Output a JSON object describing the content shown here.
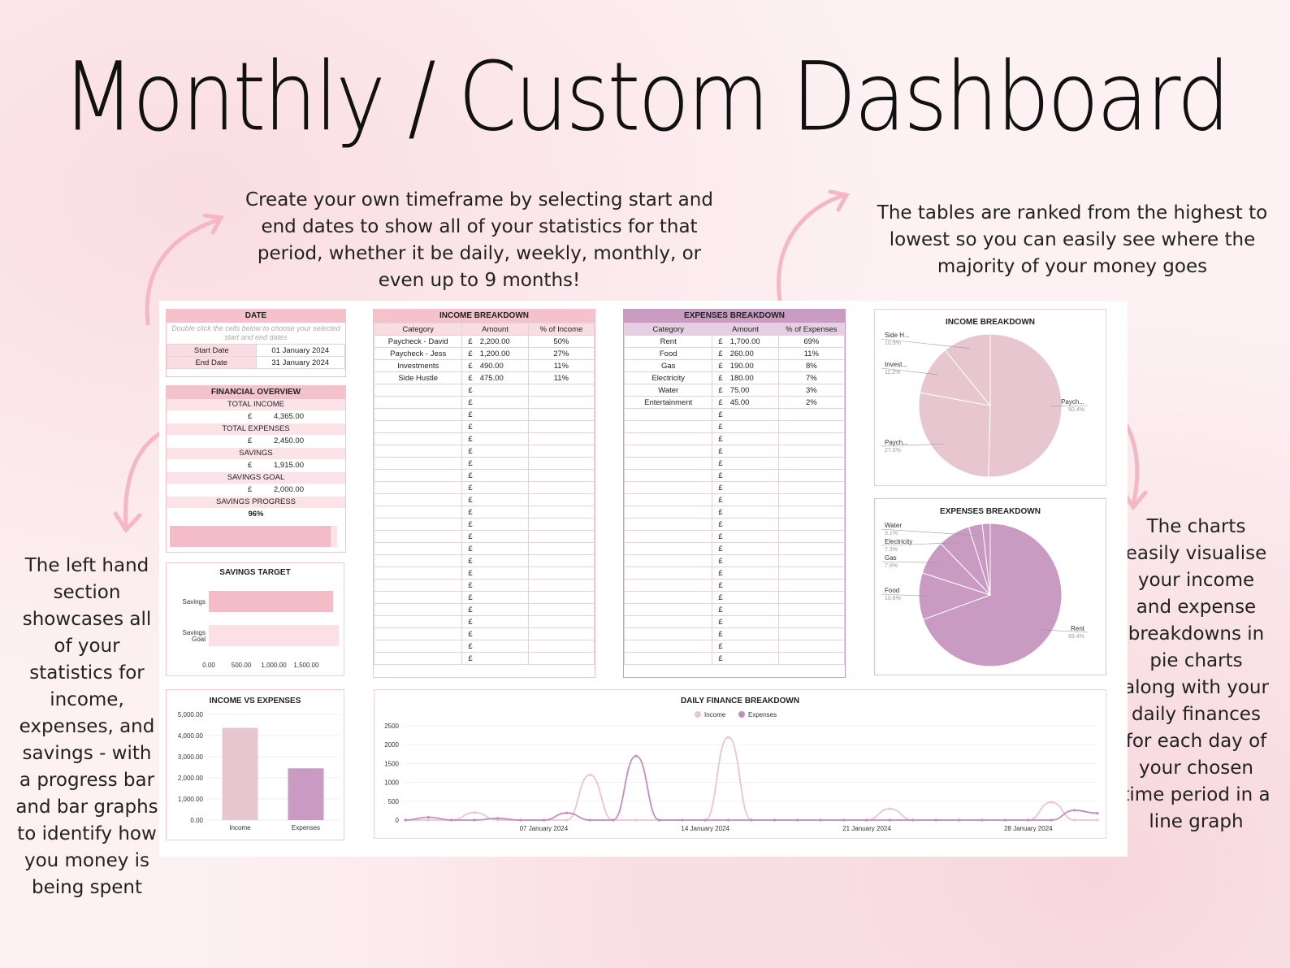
{
  "title": "Monthly / Custom Dashboard",
  "notes": {
    "top": "Create your own timeframe by selecting start and end dates to show all of your statistics for that period, whether it be daily, weekly, monthly, or even up to 9 months!",
    "right": "The tables are ranked from the highest to lowest so you can easily see where the majority of your money goes",
    "left": "The left hand section showcases all of your statistics for income, expenses, and savings - with a progress bar and bar graphs to identify how you money is being spent",
    "bottom_right": "The charts easily visualise your income and expense breakdowns in pie charts along with your daily finances for each day of your chosen time period in a line graph"
  },
  "colors": {
    "pink": "#f4c2cb",
    "light_pink": "#e8c6d0",
    "purple": "#c99bc2",
    "income_line": "#e8c6d0",
    "expense_line": "#c18dbf"
  },
  "date_panel": {
    "header": "DATE",
    "hint": "Double click the cells below to choose your selected start and end dates",
    "start_label": "Start Date",
    "start_value": "01 January 2024",
    "end_label": "End Date",
    "end_value": "31 January 2024"
  },
  "financial_overview": {
    "header": "FINANCIAL OVERVIEW",
    "total_income_label": "TOTAL INCOME",
    "total_income": "4,365.00",
    "total_expenses_label": "TOTAL EXPENSES",
    "total_expenses": "2,450.00",
    "savings_label": "SAVINGS",
    "savings": "1,915.00",
    "savings_goal_label": "SAVINGS GOAL",
    "savings_goal": "2,000.00",
    "savings_progress_label": "SAVINGS PROGRESS",
    "savings_progress": "96%",
    "progress_fraction": 0.96,
    "currency": "£"
  },
  "income_table": {
    "header": "INCOME BREAKDOWN",
    "columns": [
      "Category",
      "Amount",
      "% of Income"
    ],
    "rows": [
      [
        "Paycheck - David",
        "2,200.00",
        "50%"
      ],
      [
        "Paycheck - Jess",
        "1,200.00",
        "27%"
      ],
      [
        "Investments",
        "490.00",
        "11%"
      ],
      [
        "Side Hustle",
        "475.00",
        "11%"
      ]
    ]
  },
  "expenses_table": {
    "header": "EXPENSES BREAKDOWN",
    "columns": [
      "Category",
      "Amount",
      "% of Expenses"
    ],
    "rows": [
      [
        "Rent",
        "1,700.00",
        "69%"
      ],
      [
        "Food",
        "260.00",
        "11%"
      ],
      [
        "Gas",
        "190.00",
        "8%"
      ],
      [
        "Electricity",
        "180.00",
        "7%"
      ],
      [
        "Water",
        "75.00",
        "3%"
      ],
      [
        "Entertainment",
        "45.00",
        "2%"
      ]
    ]
  },
  "chart_data": [
    {
      "type": "pie",
      "title": "INCOME BREAKDOWN",
      "labels": [
        "Paych...",
        "Paych...",
        "Invest...",
        "Side H..."
      ],
      "percent_labels": [
        "50.4%",
        "27.5%",
        "11.2%",
        "10.9%"
      ],
      "values": [
        50.4,
        27.5,
        11.2,
        10.9
      ]
    },
    {
      "type": "pie",
      "title": "EXPENSES BREAKDOWN",
      "labels": [
        "Rent",
        "Food",
        "Gas",
        "Electricity",
        "Water",
        ""
      ],
      "percent_labels": [
        "69.4%",
        "10.6%",
        "7.8%",
        "7.3%",
        "3.1%",
        ""
      ],
      "values": [
        69.4,
        10.6,
        7.8,
        7.3,
        3.1,
        1.8
      ]
    },
    {
      "type": "bar",
      "title": "SAVINGS TARGET",
      "orientation": "horizontal",
      "categories": [
        "Savings",
        "Savings Goal"
      ],
      "values": [
        1915,
        2000
      ],
      "ticks": [
        "0.00",
        "500.00",
        "1,000.00",
        "1,500.00"
      ],
      "xlim": [
        0,
        2000
      ]
    },
    {
      "type": "bar",
      "title": "INCOME VS EXPENSES",
      "categories": [
        "Income",
        "Expenses"
      ],
      "values": [
        4365,
        2450
      ],
      "ticks": [
        "0.00",
        "1,000.00",
        "2,000.00",
        "3,000.00",
        "4,000.00",
        "5,000.00"
      ],
      "ylim": [
        0,
        5000
      ]
    },
    {
      "type": "line",
      "title": "DAILY FINANCE BREAKDOWN",
      "legend": [
        "Income",
        "Expenses"
      ],
      "x_ticks": [
        "07 January 2024",
        "14 January 2024",
        "21 January 2024",
        "28 January 2024"
      ],
      "y_ticks": [
        "0",
        "500",
        "1000",
        "1500",
        "2000",
        "2500"
      ],
      "ylim": [
        0,
        2500
      ],
      "x": [
        1,
        2,
        3,
        4,
        5,
        6,
        7,
        8,
        9,
        10,
        11,
        12,
        13,
        14,
        15,
        16,
        17,
        18,
        19,
        20,
        21,
        22,
        23,
        24,
        25,
        26,
        27,
        28,
        29,
        30,
        31
      ],
      "series": [
        {
          "name": "Income",
          "values": [
            0,
            0,
            0,
            200,
            0,
            0,
            0,
            0,
            1200,
            0,
            0,
            0,
            0,
            0,
            2200,
            0,
            0,
            0,
            0,
            0,
            0,
            300,
            0,
            0,
            0,
            0,
            0,
            0,
            475,
            0,
            0
          ]
        },
        {
          "name": "Expenses",
          "values": [
            0,
            75,
            0,
            0,
            45,
            0,
            0,
            190,
            0,
            0,
            1700,
            0,
            0,
            0,
            0,
            0,
            0,
            0,
            0,
            0,
            0,
            0,
            0,
            0,
            0,
            0,
            0,
            0,
            0,
            260,
            180
          ]
        }
      ]
    }
  ]
}
